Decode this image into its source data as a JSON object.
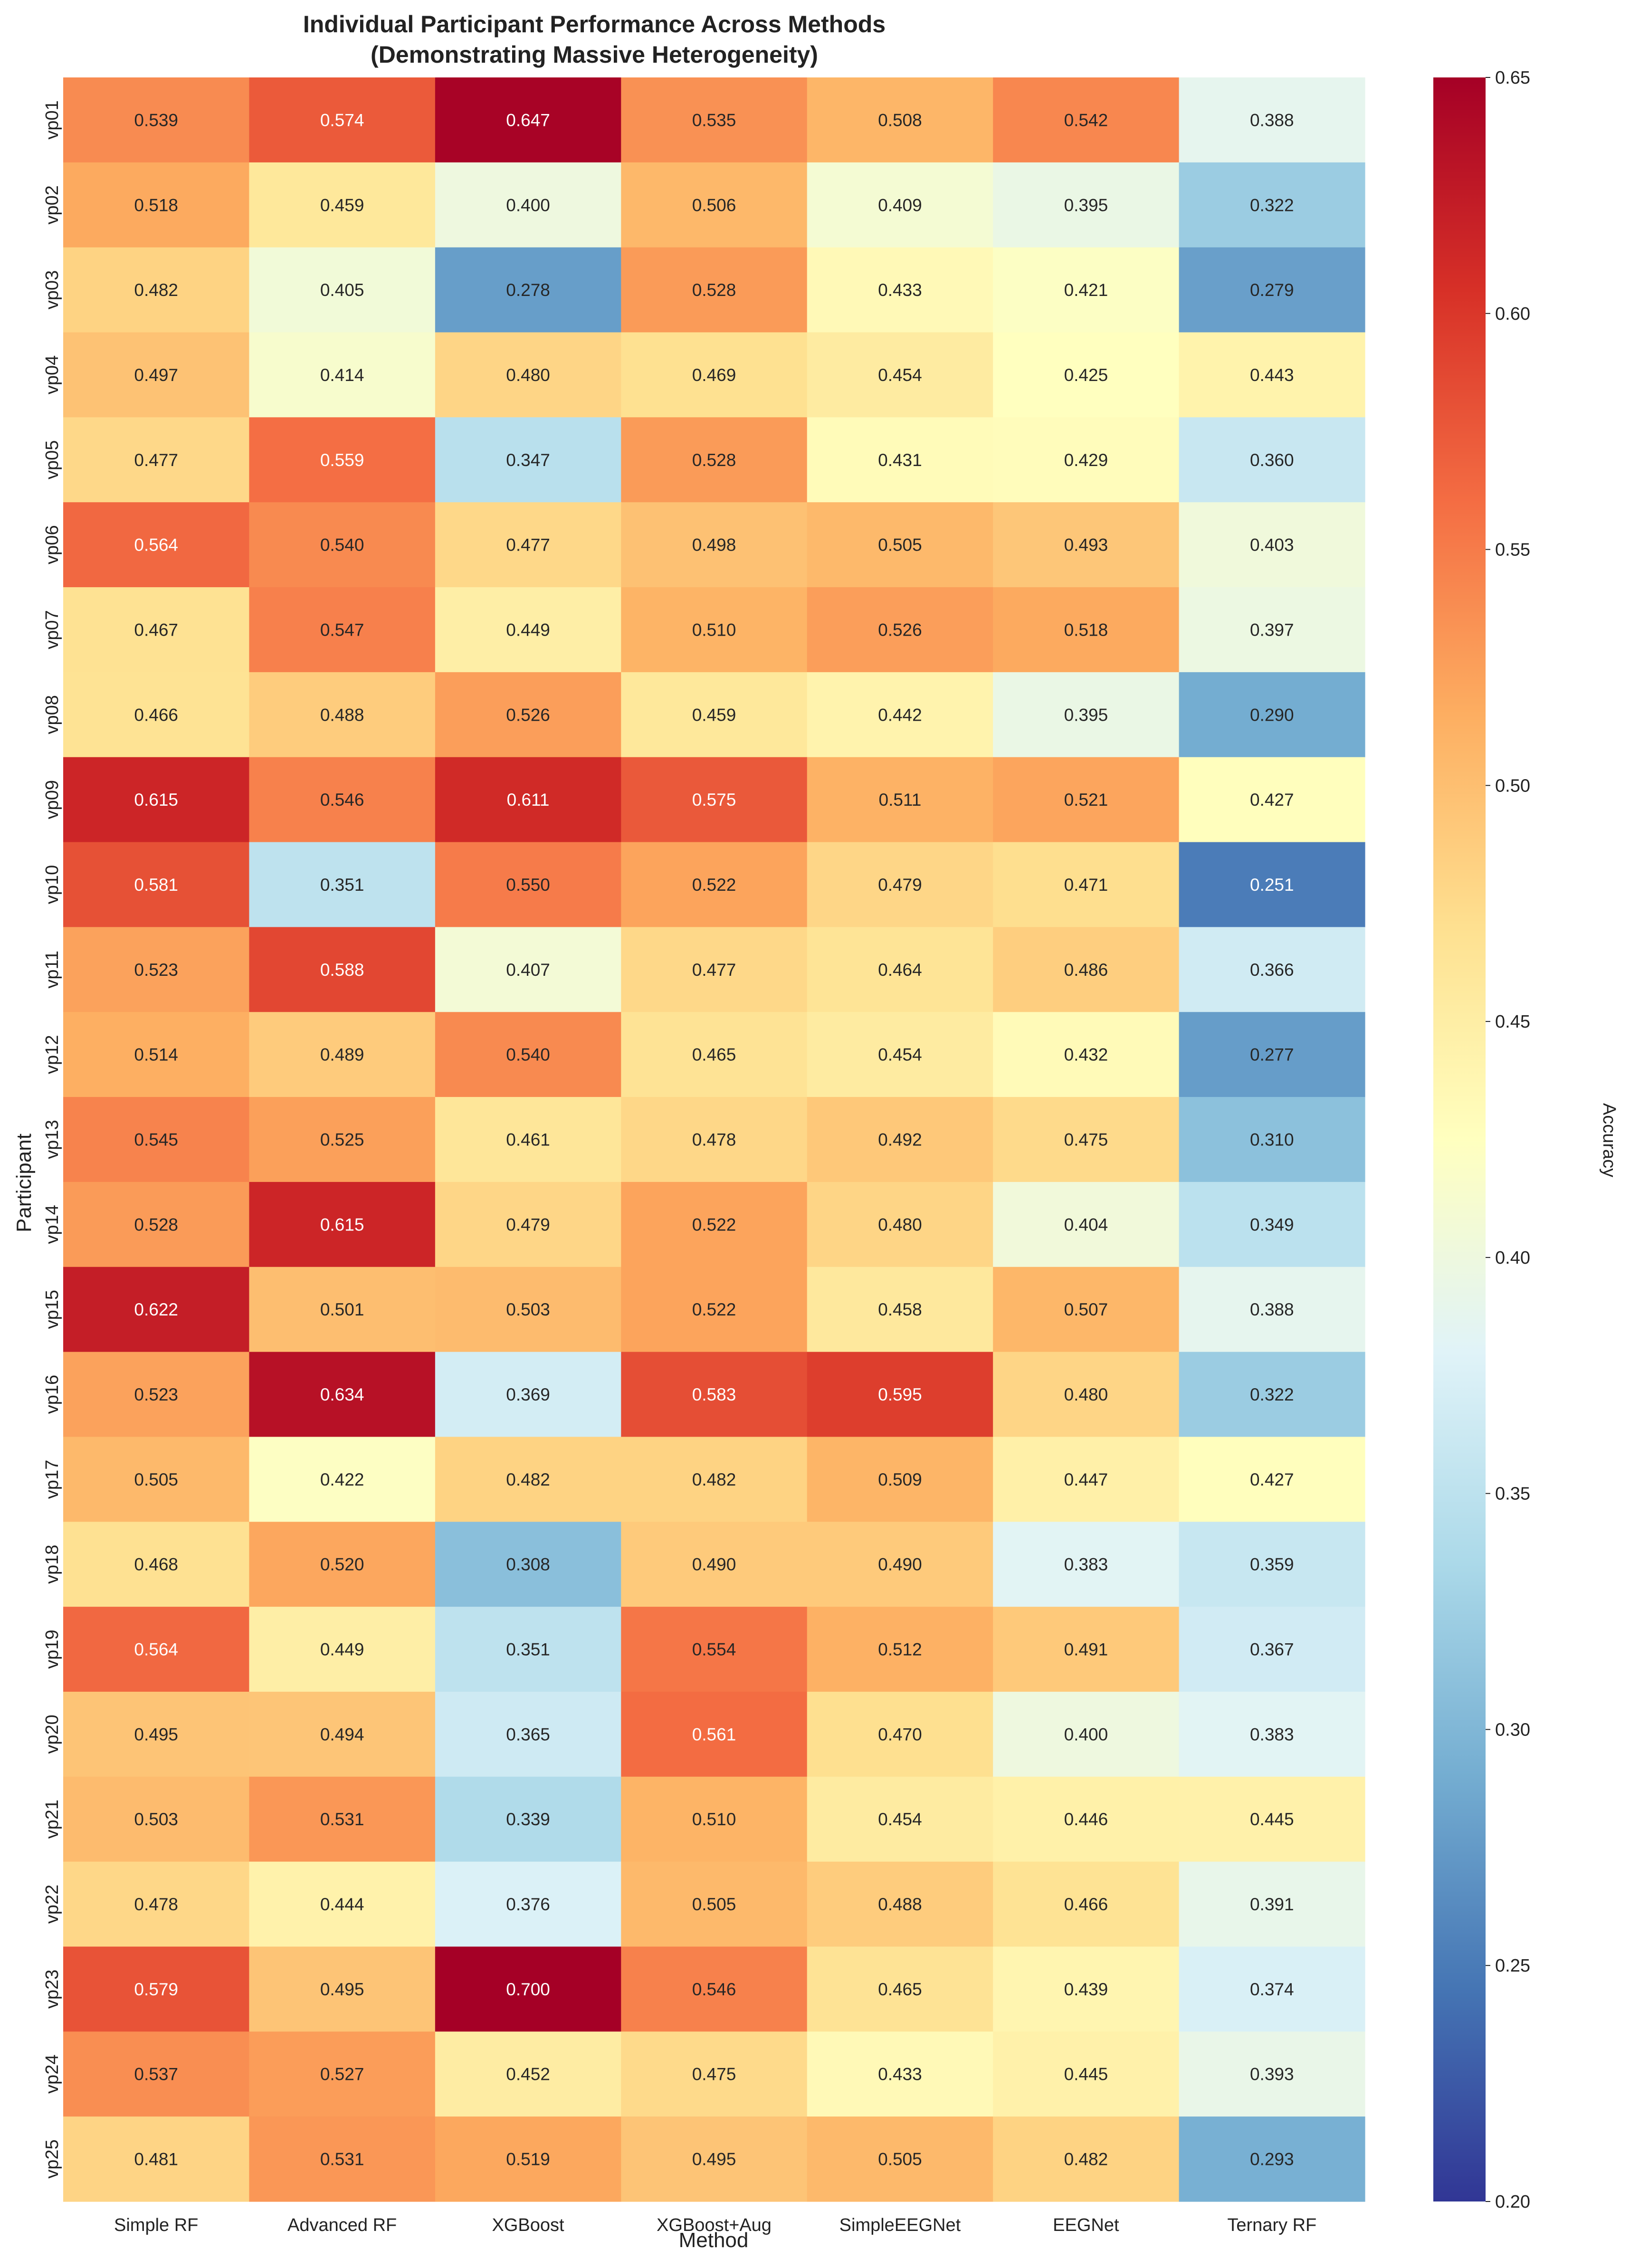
{
  "chart_data": {
    "type": "heatmap",
    "title": "Individual Participant Performance Across Methods",
    "subtitle": "(Demonstrating Massive Heterogeneity)",
    "xlabel": "Method",
    "ylabel": "Participant",
    "colorbar_label": "Accuracy",
    "colormap": "RdYlBu_r",
    "vmin": 0.2,
    "vmax": 0.65,
    "colorbar_ticks": [
      "0.20",
      "0.25",
      "0.30",
      "0.35",
      "0.40",
      "0.45",
      "0.50",
      "0.55",
      "0.60",
      "0.65"
    ],
    "columns": [
      "Simple RF",
      "Advanced RF",
      "XGBoost",
      "XGBoost+Aug",
      "SimpleEEGNet",
      "EEGNet",
      "Ternary RF"
    ],
    "rows": [
      "vp01",
      "vp02",
      "vp03",
      "vp04",
      "vp05",
      "vp06",
      "vp07",
      "vp08",
      "vp09",
      "vp10",
      "vp11",
      "vp12",
      "vp13",
      "vp14",
      "vp15",
      "vp16",
      "vp17",
      "vp18",
      "vp19",
      "vp20",
      "vp21",
      "vp22",
      "vp23",
      "vp24",
      "vp25"
    ],
    "values": [
      [
        0.539,
        0.574,
        0.647,
        0.535,
        0.508,
        0.542,
        0.388
      ],
      [
        0.518,
        0.459,
        0.4,
        0.506,
        0.409,
        0.395,
        0.322
      ],
      [
        0.482,
        0.405,
        0.278,
        0.528,
        0.433,
        0.421,
        0.279
      ],
      [
        0.497,
        0.414,
        0.48,
        0.469,
        0.454,
        0.425,
        0.443
      ],
      [
        0.477,
        0.559,
        0.347,
        0.528,
        0.431,
        0.429,
        0.36
      ],
      [
        0.564,
        0.54,
        0.477,
        0.498,
        0.505,
        0.493,
        0.403
      ],
      [
        0.467,
        0.547,
        0.449,
        0.51,
        0.526,
        0.518,
        0.397
      ],
      [
        0.466,
        0.488,
        0.526,
        0.459,
        0.442,
        0.395,
        0.29
      ],
      [
        0.615,
        0.546,
        0.611,
        0.575,
        0.511,
        0.521,
        0.427
      ],
      [
        0.581,
        0.351,
        0.55,
        0.522,
        0.479,
        0.471,
        0.251
      ],
      [
        0.523,
        0.588,
        0.407,
        0.477,
        0.464,
        0.486,
        0.366
      ],
      [
        0.514,
        0.489,
        0.54,
        0.465,
        0.454,
        0.432,
        0.277
      ],
      [
        0.545,
        0.525,
        0.461,
        0.478,
        0.492,
        0.475,
        0.31
      ],
      [
        0.528,
        0.615,
        0.479,
        0.522,
        0.48,
        0.404,
        0.349
      ],
      [
        0.622,
        0.501,
        0.503,
        0.522,
        0.458,
        0.507,
        0.388
      ],
      [
        0.523,
        0.634,
        0.369,
        0.583,
        0.595,
        0.48,
        0.322
      ],
      [
        0.505,
        0.422,
        0.482,
        0.482,
        0.509,
        0.447,
        0.427
      ],
      [
        0.468,
        0.52,
        0.308,
        0.49,
        0.49,
        0.383,
        0.359
      ],
      [
        0.564,
        0.449,
        0.351,
        0.554,
        0.512,
        0.491,
        0.367
      ],
      [
        0.495,
        0.494,
        0.365,
        0.561,
        0.47,
        0.4,
        0.383
      ],
      [
        0.503,
        0.531,
        0.339,
        0.51,
        0.454,
        0.446,
        0.445
      ],
      [
        0.478,
        0.444,
        0.376,
        0.505,
        0.488,
        0.466,
        0.391
      ],
      [
        0.579,
        0.495,
        0.7,
        0.546,
        0.465,
        0.439,
        0.374
      ],
      [
        0.537,
        0.527,
        0.452,
        0.475,
        0.433,
        0.445,
        0.393
      ],
      [
        0.481,
        0.531,
        0.519,
        0.495,
        0.505,
        0.482,
        0.293
      ]
    ]
  }
}
